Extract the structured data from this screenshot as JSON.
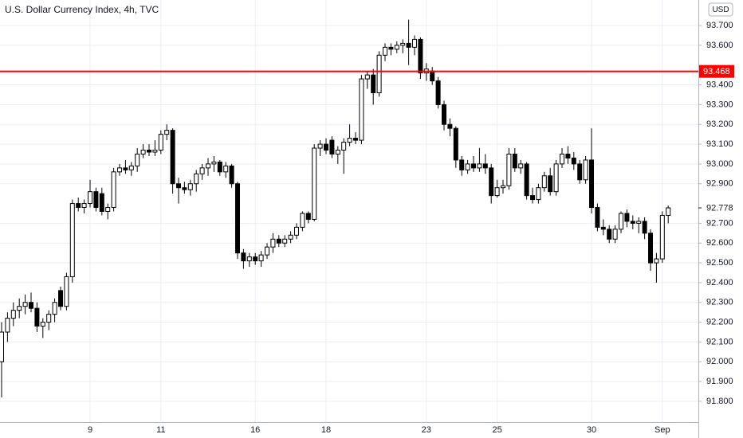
{
  "chart_data": {
    "type": "candlestick",
    "title": "U.S. Dollar Currency Index, 4h, TVC",
    "currency": "USD",
    "categories": [
      null,
      null,
      null,
      null,
      null,
      null,
      null,
      null,
      null,
      null,
      null,
      null,
      null,
      null,
      null,
      "9",
      null,
      null,
      null,
      null,
      null,
      null,
      null,
      null,
      null,
      null,
      null,
      "11",
      null,
      null,
      null,
      null,
      null,
      null,
      null,
      null,
      null,
      null,
      null,
      null,
      null,
      null,
      null,
      "16",
      null,
      null,
      null,
      null,
      null,
      null,
      null,
      null,
      null,
      null,
      null,
      "18",
      null,
      null,
      null,
      null,
      null,
      null,
      null,
      null,
      null,
      null,
      null,
      null,
      null,
      null,
      null,
      null,
      "23",
      null,
      null,
      null,
      null,
      null,
      null,
      null,
      null,
      null,
      null,
      null,
      "25",
      null,
      null,
      null,
      null,
      null,
      null,
      null,
      null,
      null,
      null,
      null,
      null,
      null,
      null,
      null,
      "30",
      null,
      null,
      null,
      null,
      null,
      null,
      null,
      null,
      null,
      null,
      null,
      "Sep",
      null
    ],
    "open": [
      92.0,
      92.15,
      92.22,
      92.26,
      92.28,
      92.3,
      92.27,
      92.18,
      92.2,
      92.24,
      92.36,
      92.28,
      92.43,
      92.8,
      92.78,
      92.8,
      92.86,
      92.85,
      92.76,
      92.78,
      92.96,
      92.98,
      92.97,
      92.99,
      93.05,
      93.07,
      93.06,
      93.07,
      93.15,
      93.17,
      92.9,
      92.88,
      92.87,
      92.9,
      92.95,
      92.98,
      93.0,
      93.01,
      92.96,
      92.99,
      92.9,
      92.55,
      92.51,
      92.53,
      92.51,
      92.54,
      92.58,
      92.62,
      92.6,
      92.62,
      92.64,
      92.68,
      92.75,
      92.72,
      93.08,
      93.1,
      93.12,
      93.05,
      93.07,
      93.11,
      93.13,
      93.12,
      93.43,
      93.45,
      93.36,
      93.55,
      93.59,
      93.58,
      93.6,
      93.61,
      93.59,
      93.63,
      93.46,
      93.47,
      93.42,
      93.3,
      93.2,
      93.18,
      93.02,
      92.97,
      93.0,
      92.98,
      93.0,
      92.98,
      92.84,
      92.88,
      92.89,
      93.05,
      92.98,
      93.0,
      92.84,
      92.82,
      92.88,
      92.94,
      92.86,
      93.0,
      93.05,
      93.03,
      93.0,
      92.92,
      93.02,
      92.78,
      92.68,
      92.67,
      92.62,
      92.67,
      92.75,
      92.71,
      92.7,
      92.71,
      92.65,
      92.5,
      92.52,
      92.74
    ],
    "high": [
      92.2,
      92.25,
      92.3,
      92.32,
      92.34,
      92.35,
      92.3,
      92.22,
      92.26,
      92.32,
      92.38,
      92.45,
      92.82,
      92.83,
      92.82,
      92.92,
      92.88,
      92.88,
      92.8,
      92.98,
      93.0,
      93.02,
      93.01,
      93.08,
      93.1,
      93.1,
      93.12,
      93.17,
      93.2,
      93.18,
      92.93,
      92.91,
      92.92,
      92.97,
      93.0,
      93.03,
      93.04,
      93.02,
      93.01,
      93.0,
      92.91,
      92.57,
      92.55,
      92.55,
      92.56,
      92.6,
      92.65,
      92.64,
      92.64,
      92.66,
      92.7,
      92.76,
      92.76,
      93.1,
      93.12,
      93.13,
      93.14,
      93.09,
      93.13,
      93.2,
      93.16,
      93.45,
      93.47,
      93.48,
      93.57,
      93.61,
      93.61,
      93.62,
      93.63,
      93.73,
      93.65,
      93.64,
      93.51,
      93.49,
      93.44,
      93.32,
      93.23,
      93.19,
      93.04,
      93.02,
      93.04,
      93.08,
      93.05,
      93.0,
      92.92,
      92.92,
      93.08,
      93.08,
      93.02,
      93.01,
      92.88,
      92.9,
      92.96,
      92.98,
      93.02,
      93.08,
      93.09,
      93.06,
      93.02,
      93.04,
      93.18,
      92.8,
      92.72,
      92.69,
      92.69,
      92.76,
      92.77,
      92.74,
      92.73,
      92.73,
      92.67,
      92.55,
      92.76,
      92.79
    ],
    "low": [
      91.82,
      92.1,
      92.18,
      92.22,
      92.24,
      92.25,
      92.15,
      92.12,
      92.16,
      92.2,
      92.26,
      92.26,
      92.4,
      92.76,
      92.75,
      92.78,
      92.76,
      92.74,
      92.72,
      92.76,
      92.94,
      92.95,
      92.94,
      92.96,
      93.03,
      93.04,
      93.04,
      93.05,
      93.12,
      92.85,
      92.8,
      92.85,
      92.84,
      92.86,
      92.92,
      92.94,
      92.96,
      92.94,
      92.93,
      92.88,
      92.52,
      92.47,
      92.48,
      92.49,
      92.48,
      92.52,
      92.55,
      92.58,
      92.58,
      92.6,
      92.62,
      92.66,
      92.7,
      92.71,
      93.04,
      93.05,
      93.03,
      93.0,
      92.95,
      93.09,
      93.1,
      93.1,
      93.38,
      93.3,
      93.34,
      93.52,
      93.55,
      93.56,
      93.56,
      93.5,
      93.55,
      93.43,
      93.42,
      93.4,
      93.28,
      93.17,
      93.14,
      92.98,
      92.94,
      92.95,
      92.96,
      92.96,
      92.95,
      92.8,
      92.83,
      92.85,
      92.87,
      92.96,
      92.95,
      92.82,
      92.8,
      92.8,
      92.86,
      92.84,
      92.84,
      92.98,
      93.0,
      92.97,
      92.9,
      92.9,
      92.75,
      92.66,
      92.64,
      92.6,
      92.6,
      92.65,
      92.68,
      92.67,
      92.65,
      92.62,
      92.46,
      92.4,
      92.5,
      92.7
    ],
    "close": [
      92.15,
      92.22,
      92.26,
      92.28,
      92.3,
      92.27,
      92.18,
      92.2,
      92.24,
      92.3,
      92.28,
      92.43,
      92.8,
      92.78,
      92.8,
      92.86,
      92.78,
      92.76,
      92.78,
      92.96,
      92.98,
      92.97,
      92.99,
      93.05,
      93.07,
      93.06,
      93.07,
      93.15,
      93.17,
      92.9,
      92.88,
      92.87,
      92.9,
      92.95,
      92.98,
      93.0,
      93.01,
      92.96,
      92.99,
      92.9,
      92.55,
      92.51,
      92.53,
      92.51,
      92.54,
      92.58,
      92.62,
      92.6,
      92.62,
      92.64,
      92.68,
      92.75,
      92.72,
      93.08,
      93.1,
      93.07,
      93.05,
      93.07,
      93.11,
      93.13,
      93.12,
      93.43,
      93.45,
      93.36,
      93.55,
      93.59,
      93.58,
      93.6,
      93.61,
      93.59,
      93.63,
      93.46,
      93.48,
      93.42,
      93.3,
      93.2,
      93.18,
      93.02,
      92.97,
      93.0,
      92.98,
      93.0,
      92.98,
      92.84,
      92.88,
      92.89,
      93.05,
      92.98,
      93.0,
      92.84,
      92.82,
      92.88,
      92.94,
      92.86,
      93.0,
      93.05,
      93.03,
      93.0,
      92.92,
      93.02,
      92.78,
      92.68,
      92.67,
      92.62,
      92.67,
      92.75,
      92.71,
      92.7,
      92.71,
      92.65,
      92.5,
      92.52,
      92.74,
      92.778
    ],
    "up_color": "#ffffff",
    "down_color": "#000000",
    "ylim": [
      91.695,
      93.829
    ],
    "yticks": [
      {
        "value": 91.8,
        "label": "91.800"
      },
      {
        "value": 91.9,
        "label": "91.900"
      },
      {
        "value": 92.0,
        "label": "92.000"
      },
      {
        "value": 92.1,
        "label": "92.100"
      },
      {
        "value": 92.2,
        "label": "92.200"
      },
      {
        "value": 92.3,
        "label": "92.300"
      },
      {
        "value": 92.4,
        "label": "92.400"
      },
      {
        "value": 92.5,
        "label": "92.500"
      },
      {
        "value": 92.6,
        "label": "92.600"
      },
      {
        "value": 92.7,
        "label": "92.700"
      },
      {
        "value": 92.9,
        "label": "92.900"
      },
      {
        "value": 93.0,
        "label": "93.000"
      },
      {
        "value": 93.1,
        "label": "93.100"
      },
      {
        "value": 93.2,
        "label": "93.200"
      },
      {
        "value": 93.3,
        "label": "93.300"
      },
      {
        "value": 93.4,
        "label": "93.400"
      },
      {
        "value": 93.6,
        "label": "93.600"
      },
      {
        "value": 93.7,
        "label": "93.700"
      }
    ],
    "grid": true,
    "hline": {
      "value": 93.468,
      "color": "#ff0000"
    }
  }
}
